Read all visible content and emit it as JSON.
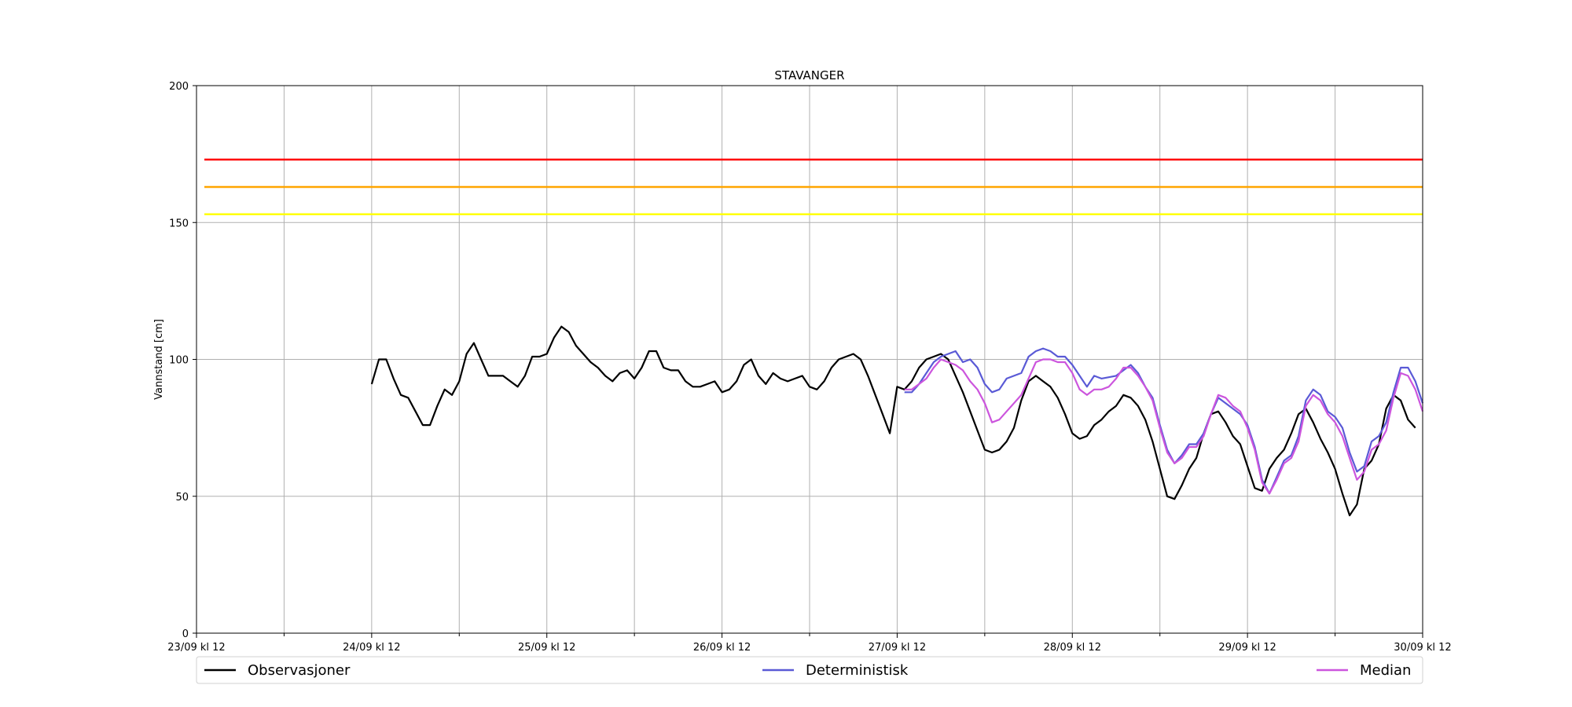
{
  "chart_data": {
    "type": "line",
    "title": "STAVANGER",
    "xlabel": "",
    "ylabel": "Vannstand [cm]",
    "xlim": [
      "23/09 12:00",
      "30/09 12:00"
    ],
    "ylim": [
      0,
      200
    ],
    "yticks": [
      0,
      50,
      100,
      150,
      200
    ],
    "xtick_labels": [
      "23/09 kl 12",
      "24/09 kl 12",
      "25/09 kl 12",
      "26/09 kl 12",
      "27/09 kl 12",
      "28/09 kl 12",
      "29/09 kl 12",
      "30/09 kl 12"
    ],
    "grid": true,
    "legend_position": "bottom",
    "thresholds": [
      {
        "value": 173,
        "color": "#ff0000"
      },
      {
        "value": 163,
        "color": "#ffa500"
      },
      {
        "value": 153,
        "color": "#ffff00"
      }
    ],
    "series": [
      {
        "name": "Observasjoner",
        "color": "#000000",
        "x_start": "24/09 12:00",
        "step_hours": 1,
        "values": [
          91,
          100,
          100,
          93,
          87,
          86,
          81,
          76,
          76,
          83,
          89,
          87,
          92,
          102,
          106,
          100,
          94,
          94,
          94,
          92,
          90,
          94,
          101,
          101,
          102,
          108,
          112,
          110,
          105,
          102,
          99,
          97,
          94,
          92,
          95,
          96,
          93,
          97,
          103,
          103,
          97,
          96,
          96,
          92,
          90,
          90,
          91,
          92,
          88,
          89,
          92,
          98,
          100,
          94,
          91,
          95,
          93,
          92,
          93,
          94,
          90,
          89,
          92,
          97,
          100,
          101,
          102,
          100,
          94,
          87,
          80,
          73,
          90,
          89,
          92,
          97,
          100,
          101,
          102,
          100,
          94,
          88,
          81,
          74,
          67,
          66,
          67,
          70,
          75,
          85,
          92,
          94,
          92,
          90,
          86,
          80,
          73,
          71,
          72,
          76,
          78,
          81,
          83,
          87,
          86,
          83,
          78,
          70,
          60,
          50,
          49,
          54,
          60,
          64,
          73,
          80,
          81,
          77,
          72,
          69,
          61,
          53,
          52,
          60,
          64,
          67,
          73,
          80,
          82,
          77,
          71,
          66,
          60,
          51,
          43,
          47,
          60,
          63,
          69,
          82,
          87,
          85,
          78,
          75
        ]
      },
      {
        "name": "Deterministisk",
        "color": "#5a5ad6",
        "x_start": "27/09 13:00",
        "step_hours": 1,
        "values": [
          88,
          88,
          91,
          95,
          99,
          101,
          102,
          103,
          99,
          100,
          97,
          91,
          88,
          89,
          93,
          94,
          95,
          101,
          103,
          104,
          103,
          101,
          101,
          98,
          94,
          90,
          94,
          93,
          93.5,
          94,
          96,
          98,
          95,
          90,
          86,
          76,
          67,
          62,
          65,
          69,
          69,
          73,
          80,
          86,
          84,
          82,
          80,
          76,
          68,
          56,
          51,
          57,
          63,
          65,
          72,
          85,
          89,
          87,
          81,
          79,
          75,
          66,
          59,
          61,
          70,
          72,
          77,
          88,
          97,
          97,
          92,
          84
        ]
      },
      {
        "name": "Median",
        "color": "#cc55dd",
        "x_start": "27/09 13:00",
        "step_hours": 1,
        "values": [
          89,
          89,
          91,
          93,
          97,
          100,
          99,
          98,
          96,
          92,
          89,
          84,
          77,
          78,
          81,
          84,
          87,
          93,
          99,
          100,
          100,
          99,
          99,
          95,
          89,
          87,
          89,
          89,
          90,
          93,
          97,
          97,
          94,
          90,
          85,
          75,
          66,
          62,
          64,
          68,
          68,
          72,
          80,
          87,
          86,
          83,
          81,
          75,
          67,
          55,
          51,
          56,
          62,
          64,
          70,
          83,
          87,
          85,
          80,
          77,
          72,
          64,
          56,
          59,
          67,
          69,
          74,
          86,
          95,
          94,
          89,
          81
        ]
      }
    ]
  }
}
